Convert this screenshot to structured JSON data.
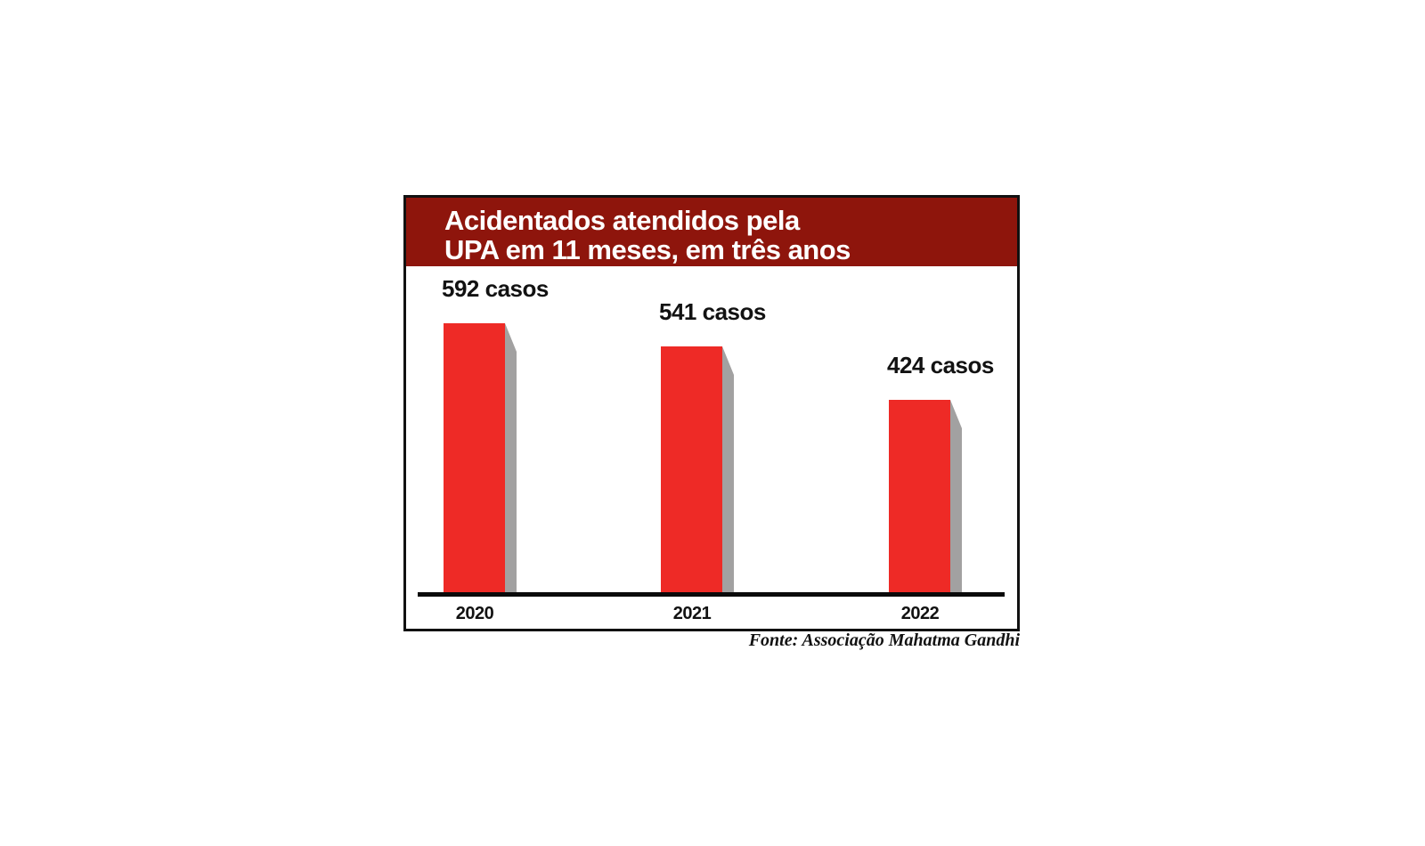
{
  "colors": {
    "title_band": "#8e150c",
    "bar": "#ee2a26",
    "bar_shadow": "#a2a1a1",
    "axis": "#0a0a0a",
    "text": "#121212"
  },
  "header": {
    "title_line1": "Acidentados atendidos pela",
    "title_line2": "UPA em 11 meses, em três anos"
  },
  "chart_data": {
    "type": "bar",
    "title": "Acidentados atendidos pela UPA em 11 meses, em três anos",
    "categories": [
      "2020",
      "2021",
      "2022"
    ],
    "values": [
      592,
      541,
      424
    ],
    "value_labels": [
      "592 casos",
      "541 casos",
      "424 casos"
    ],
    "xlabel": "",
    "ylabel": "",
    "ylim": [
      0,
      600
    ],
    "grid": false,
    "legend": false,
    "bar_color": "#ee2a26",
    "source": "Fonte: Associação Mahatma Gandhi"
  }
}
